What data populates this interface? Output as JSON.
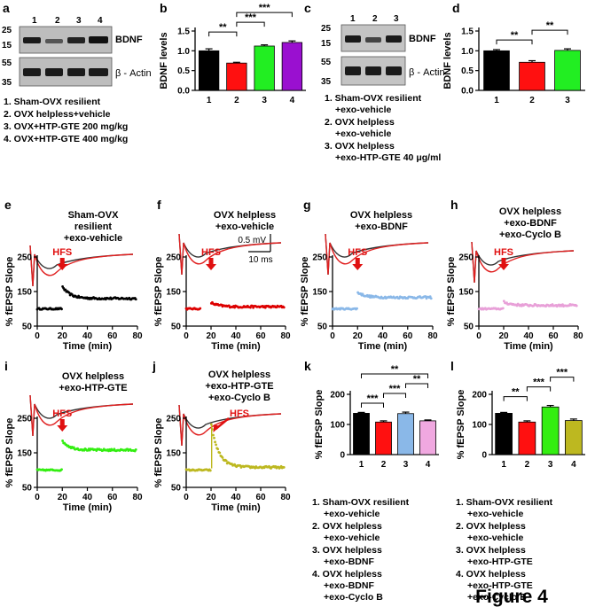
{
  "panel_letters": [
    "a",
    "b",
    "c",
    "d",
    "e",
    "f",
    "g",
    "h",
    "i",
    "j",
    "k",
    "l"
  ],
  "western_a": {
    "lanes": [
      "1",
      "2",
      "3",
      "4"
    ],
    "mw_bdnf": [
      "25",
      "15"
    ],
    "mw_actin": [
      "55",
      "35"
    ],
    "label_bdnf": "BDNF",
    "label_actin": "β - Actin",
    "legend": [
      "1. Sham-OVX resilient",
      "2. OVX helpless+vehicle",
      "3. OVX+HTP-GTE 200 mg/kg",
      "4. OVX+HTP-GTE 400 mg/kg"
    ]
  },
  "western_c": {
    "lanes": [
      "1",
      "2",
      "3"
    ],
    "mw_bdnf": [
      "25",
      "15"
    ],
    "mw_actin": [
      "55",
      "35"
    ],
    "label_bdnf": "BDNF",
    "label_actin": "β - Actin",
    "legend": [
      "1. Sham-OVX resilient",
      "+exo-vehicle",
      "2. OVX helpless",
      "+exo-vehicle",
      "3. OVX helpless",
      "+exo-HTP-GTE 40 μg/ml"
    ]
  },
  "ltp_panels": [
    {
      "title": [
        "Sham-OVX",
        "resilient",
        "+exo-vehicle"
      ],
      "color": "#000000",
      "hfs": "HFS",
      "pre": 100,
      "peak": 165,
      "post": 130
    },
    {
      "title": [
        "OVX helpless",
        "+exo-vehicle"
      ],
      "color": "#dd0000",
      "hfs": "HFS",
      "pre": 100,
      "peak": 118,
      "post": 106,
      "scale_mv": "0.5 mV",
      "scale_ms": "10 ms"
    },
    {
      "title": [
        "OVX helpless",
        "+exo-BDNF"
      ],
      "color": "#8ab8e8",
      "hfs": "HFS",
      "pre": 100,
      "peak": 148,
      "post": 133
    },
    {
      "title": [
        "OVX helpless",
        "+exo-BDNF",
        "+exo-Cyclo B"
      ],
      "color": "#e8a0d8",
      "hfs": "HFS",
      "pre": 100,
      "peak": 120,
      "post": 110
    },
    {
      "title": [
        "OVX helpless",
        "+exo-HTP-GTE"
      ],
      "color": "#33ee11",
      "hfs": "HFS",
      "pre": 100,
      "peak": 185,
      "post": 158
    },
    {
      "title": [
        "OVX helpless",
        "+exo-HTP-GTE",
        "+exo-Cyclo B"
      ],
      "color": "#bdb820",
      "hfs": "HFS",
      "pre": 100,
      "peak": 235,
      "post": 108
    }
  ],
  "ltp_axes": {
    "ylabel": "% fEPSP Slope",
    "xlabel": "Time (min)",
    "yticks": [
      "50",
      "150",
      "250"
    ],
    "xticks": [
      "0",
      "20",
      "40",
      "60",
      "80"
    ]
  },
  "legend_k": [
    "1. Sham-OVX resilient",
    "+exo-vehicle",
    "2. OVX helpless",
    "+exo-vehicle",
    "3. OVX helpless",
    "+exo-BDNF",
    "4. OVX helpless",
    "+exo-BDNF",
    "+exo-Cyclo B"
  ],
  "legend_l": [
    "1. Sham-OVX resilient",
    "+exo-vehicle",
    "2. OVX helpless",
    "+exo-vehicle",
    "3. OVX helpless",
    "+exo-HTP-GTE",
    "4. OVX helpless",
    "+exo-HTP-GTE",
    "+exo-Cyclo B"
  ],
  "figure_label": "Figure 4",
  "chart_data": [
    {
      "id": "b",
      "type": "bar",
      "ylabel": "BDNF levels",
      "categories": [
        "1",
        "2",
        "3",
        "4"
      ],
      "values": [
        1.0,
        0.69,
        1.12,
        1.21
      ],
      "errors": [
        0.05,
        0.02,
        0.03,
        0.04
      ],
      "colors": [
        "#000000",
        "#ff1010",
        "#22ee22",
        "#9a10d0"
      ],
      "ylim": [
        0,
        1.5
      ],
      "yticks": [
        "0.0",
        "0.5",
        "1.0",
        "1.5"
      ],
      "sig": [
        {
          "a": 0,
          "b": 1,
          "label": "**"
        },
        {
          "a": 1,
          "b": 2,
          "label": "***"
        },
        {
          "a": 1,
          "b": 3,
          "label": "***"
        }
      ]
    },
    {
      "id": "d",
      "type": "bar",
      "ylabel": "BDNF levels",
      "categories": [
        "1",
        "2",
        "3"
      ],
      "values": [
        1.0,
        0.71,
        1.01
      ],
      "errors": [
        0.03,
        0.04,
        0.04
      ],
      "colors": [
        "#000000",
        "#ff1010",
        "#22ee22"
      ],
      "ylim": [
        0,
        1.5
      ],
      "yticks": [
        "0.0",
        "0.5",
        "1.0",
        "1.5"
      ],
      "sig": [
        {
          "a": 0,
          "b": 1,
          "label": "**"
        },
        {
          "a": 1,
          "b": 2,
          "label": "**"
        }
      ]
    },
    {
      "id": "k",
      "type": "bar",
      "ylabel": "% fEPSP Slope",
      "categories": [
        "1",
        "2",
        "3",
        "4"
      ],
      "values": [
        137,
        108,
        136,
        112
      ],
      "errors": [
        3,
        4,
        5,
        3
      ],
      "colors": [
        "#000000",
        "#ff1010",
        "#8ab8e8",
        "#f0a8e0"
      ],
      "ylim": [
        0,
        200
      ],
      "yticks": [
        "0",
        "100",
        "200"
      ],
      "sig": [
        {
          "a": 0,
          "b": 1,
          "label": "***"
        },
        {
          "a": 1,
          "b": 2,
          "label": "***"
        },
        {
          "a": 2,
          "b": 3,
          "label": "**"
        },
        {
          "a": 0,
          "b": 3,
          "label": "**"
        }
      ]
    },
    {
      "id": "l",
      "type": "bar",
      "ylabel": "% fEPSP Slope",
      "categories": [
        "1",
        "2",
        "3",
        "4"
      ],
      "values": [
        137,
        108,
        158,
        113
      ],
      "errors": [
        3,
        4,
        5,
        5
      ],
      "colors": [
        "#000000",
        "#ff1010",
        "#33ee11",
        "#bdb820"
      ],
      "ylim": [
        0,
        200
      ],
      "yticks": [
        "0",
        "100",
        "200"
      ],
      "sig": [
        {
          "a": 0,
          "b": 1,
          "label": "**"
        },
        {
          "a": 1,
          "b": 2,
          "label": "***"
        },
        {
          "a": 2,
          "b": 3,
          "label": "***"
        }
      ]
    }
  ]
}
